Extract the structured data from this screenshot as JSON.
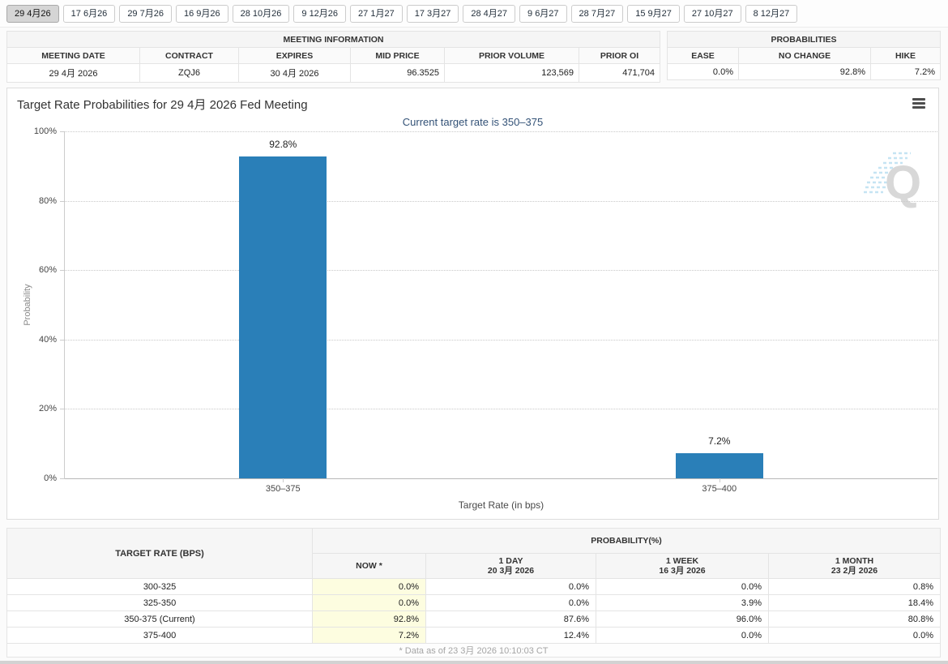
{
  "tabs": {
    "items": [
      {
        "label": "29 4月26",
        "active": true
      },
      {
        "label": "17 6月26",
        "active": false
      },
      {
        "label": "29 7月26",
        "active": false
      },
      {
        "label": "16 9月26",
        "active": false
      },
      {
        "label": "28 10月26",
        "active": false
      },
      {
        "label": "9 12月26",
        "active": false
      },
      {
        "label": "27 1月27",
        "active": false
      },
      {
        "label": "17 3月27",
        "active": false
      },
      {
        "label": "28 4月27",
        "active": false
      },
      {
        "label": "9 6月27",
        "active": false
      },
      {
        "label": "28 7月27",
        "active": false
      },
      {
        "label": "15 9月27",
        "active": false
      },
      {
        "label": "27 10月27",
        "active": false
      },
      {
        "label": "8 12月27",
        "active": false
      }
    ]
  },
  "meeting_info": {
    "title": "MEETING INFORMATION",
    "headers": [
      "MEETING DATE",
      "CONTRACT",
      "EXPIRES",
      "MID PRICE",
      "PRIOR VOLUME",
      "PRIOR OI"
    ],
    "values": [
      "29 4月 2026",
      "ZQJ6",
      "30 4月 2026",
      "96.3525",
      "123,569",
      "471,704"
    ]
  },
  "probabilities_summary": {
    "title": "PROBABILITIES",
    "headers": [
      "EASE",
      "NO CHANGE",
      "HIKE"
    ],
    "values": [
      "0.0%",
      "92.8%",
      "7.2%"
    ]
  },
  "chart": {
    "title": "Target Rate Probabilities for 29 4月 2026 Fed Meeting",
    "subtitle": "Current target rate is 350–375",
    "menu_icon": "hamburger-icon",
    "watermark_letter": "Q"
  },
  "chart_data": {
    "type": "bar",
    "categories": [
      "350–375",
      "375–400"
    ],
    "values": [
      92.8,
      7.2
    ],
    "bar_labels": [
      "92.8%",
      "7.2%"
    ],
    "title": "Target Rate Probabilities for 29 4月 2026 Fed Meeting",
    "subtitle": "Current target rate is 350–375",
    "xlabel": "Target Rate (in bps)",
    "ylabel": "Probability",
    "ylim": [
      0,
      100
    ],
    "yticks": [
      0,
      20,
      40,
      60,
      80,
      100
    ],
    "ytick_labels": [
      "0%",
      "20%",
      "40%",
      "60%",
      "80%",
      "100%"
    ],
    "grid": "dotted-horizontal",
    "legend": "none",
    "bar_color": "#2A7FB8"
  },
  "probability_table": {
    "rate_header": "TARGET RATE (BPS)",
    "group_header": "PROBABILITY(%)",
    "col_headers": [
      {
        "line1": "NOW *",
        "line2": ""
      },
      {
        "line1": "1 DAY",
        "line2": "20 3月 2026"
      },
      {
        "line1": "1 WEEK",
        "line2": "16 3月 2026"
      },
      {
        "line1": "1 MONTH",
        "line2": "23 2月 2026"
      }
    ],
    "rows": [
      {
        "rate": "300-325",
        "now": "0.0%",
        "day": "0.0%",
        "week": "0.0%",
        "month": "0.8%"
      },
      {
        "rate": "325-350",
        "now": "0.0%",
        "day": "0.0%",
        "week": "3.9%",
        "month": "18.4%"
      },
      {
        "rate": "350-375 (Current)",
        "now": "92.8%",
        "day": "87.6%",
        "week": "96.0%",
        "month": "80.8%"
      },
      {
        "rate": "375-400",
        "now": "7.2%",
        "day": "12.4%",
        "week": "0.0%",
        "month": "0.0%"
      }
    ],
    "footnote": "* Data as of 23 3月 2026 10:10:03 CT"
  },
  "colors": {
    "bar": "#2A7FB8",
    "subtitle_text": "#335277",
    "now_column_highlight": "#FDFDE0",
    "active_tab_bg": "#D5D5D5"
  }
}
